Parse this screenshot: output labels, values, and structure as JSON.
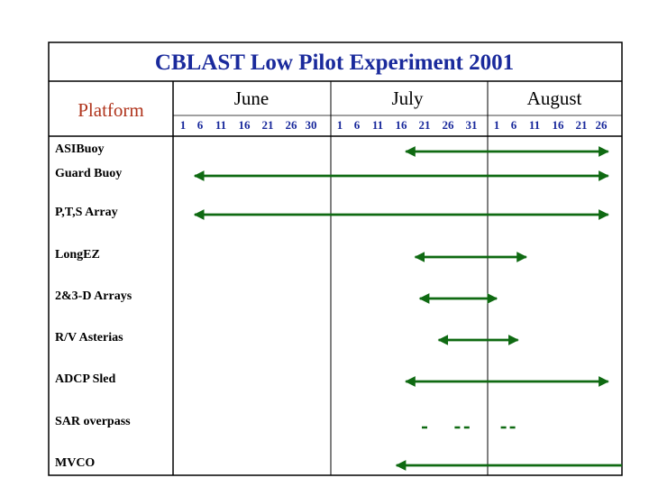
{
  "title": "CBLAST Low Pilot Experiment 2001",
  "platform_header": "Platform",
  "months": [
    "June",
    "July",
    "August"
  ],
  "day_ticks": {
    "June": [
      "1",
      "6",
      "11",
      "16",
      "21",
      "26",
      "30"
    ],
    "July": [
      "1",
      "6",
      "11",
      "16",
      "21",
      "26",
      "31"
    ],
    "August": [
      "1",
      "6",
      "11",
      "16",
      "21",
      "26"
    ]
  },
  "colors": {
    "title": "#1a2a9c",
    "platform_header": "#b0341c",
    "day_ticks": "#1a2a9c",
    "bars": "#0f6a12",
    "grid": "#000000"
  },
  "rows": [
    {
      "label": "ASIBuoy",
      "bar": {
        "style": "arrow-both",
        "start": "July 17",
        "end": "August 28"
      }
    },
    {
      "label": "Guard Buoy",
      "bar": {
        "style": "arrow-both",
        "start": "June 1",
        "end": "August 28"
      }
    },
    {
      "label": "P,T,S Array",
      "bar": {
        "style": "arrow-both",
        "start": "June 1",
        "end": "August 28"
      }
    },
    {
      "label": "LongEZ",
      "bar": {
        "style": "arrow-both",
        "start": "July 19",
        "end": "August 9"
      }
    },
    {
      "label": "2&3-D Arrays",
      "bar": {
        "style": "arrow-both",
        "start": "July 20",
        "end": "August 1"
      }
    },
    {
      "label": "R/V Asterias",
      "bar": {
        "style": "arrow-both",
        "start": "July 24",
        "end": "August 7"
      }
    },
    {
      "label": "ADCP Sled",
      "bar": {
        "style": "arrow-both",
        "start": "July 17",
        "end": "August 28"
      }
    },
    {
      "label": "SAR overpass",
      "bar": {
        "style": "dashes",
        "dates": [
          "July 21",
          "July 28",
          "July 30",
          "August 3"
        ]
      }
    },
    {
      "label": "MVCO",
      "bar": {
        "style": "arrow-left",
        "start": "July 15",
        "end": "August 31"
      }
    }
  ]
}
